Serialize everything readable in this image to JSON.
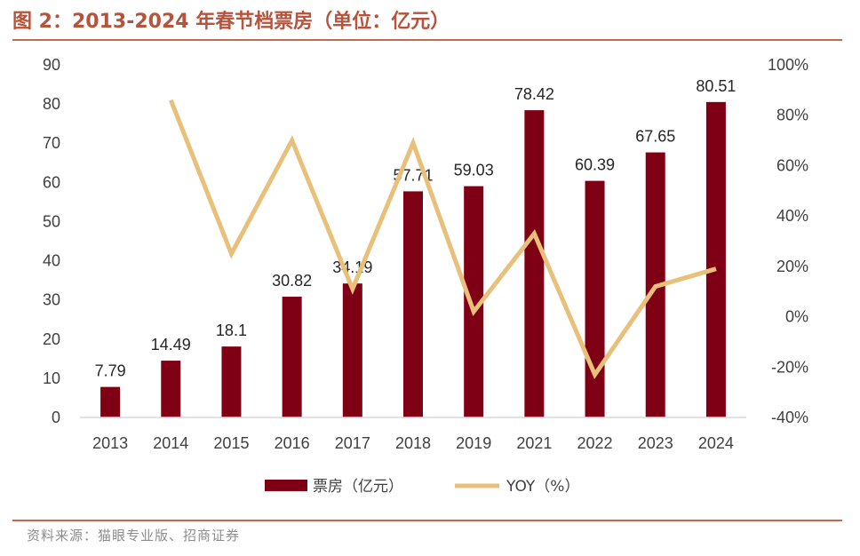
{
  "title": "图 2：2013-2024 年春节档票房（单位：亿元）",
  "source": "资料来源：猫眼专业版、招商证券",
  "colors": {
    "bar": "#7f0015",
    "line": "#e8c07a",
    "accent": "#b5533c",
    "rule": "#c26a4f"
  },
  "chart_data": {
    "type": "bar",
    "categories": [
      "2013",
      "2014",
      "2015",
      "2016",
      "2017",
      "2018",
      "2019",
      "2021",
      "2022",
      "2023",
      "2024"
    ],
    "series": [
      {
        "name": "票房（亿元）",
        "type": "bar",
        "axis": "left",
        "values": [
          7.79,
          14.49,
          18.1,
          30.82,
          34.19,
          57.71,
          59.03,
          78.42,
          60.39,
          67.65,
          80.51
        ],
        "labels": [
          "7.79",
          "14.49",
          "18.1",
          "30.82",
          "34.19",
          "57.71",
          "59.03",
          "78.42",
          "60.39",
          "67.65",
          "80.51"
        ]
      },
      {
        "name": "YOY（%）",
        "type": "line",
        "axis": "right",
        "values": [
          null,
          86,
          25,
          70,
          11,
          69,
          2,
          33,
          -23,
          12,
          19
        ]
      }
    ],
    "y_left": {
      "lim": [
        0,
        90
      ],
      "ticks": [
        "0",
        "10",
        "20",
        "30",
        "40",
        "50",
        "60",
        "70",
        "80",
        "90"
      ]
    },
    "y_right": {
      "lim": [
        -40,
        100
      ],
      "ticks": [
        "-40%",
        "-20%",
        "0%",
        "20%",
        "40%",
        "60%",
        "80%",
        "100%"
      ]
    },
    "legend_position": "bottom",
    "grid": false
  }
}
